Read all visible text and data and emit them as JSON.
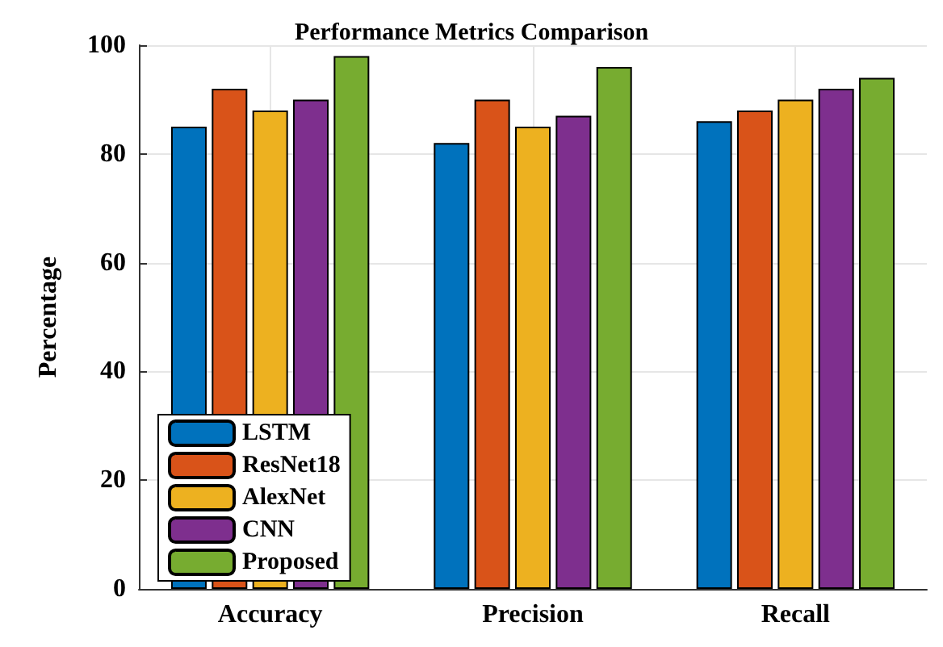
{
  "chart_data": {
    "type": "bar",
    "title": "Performance Metrics Comparison",
    "ylabel": "Percentage",
    "categories": [
      "Accuracy",
      "Precision",
      "Recall"
    ],
    "series": [
      {
        "name": "LSTM",
        "color": "#0072bd",
        "values": [
          85,
          82,
          86
        ]
      },
      {
        "name": "ResNet18",
        "color": "#d95319",
        "values": [
          92,
          90,
          88
        ]
      },
      {
        "name": "AlexNet",
        "color": "#edb120",
        "values": [
          88,
          85,
          90
        ]
      },
      {
        "name": "CNN",
        "color": "#7e2f8e",
        "values": [
          90,
          87,
          92
        ]
      },
      {
        "name": "Proposed",
        "color": "#77ac30",
        "values": [
          98,
          96,
          94
        ]
      }
    ],
    "ylim": [
      0,
      100
    ],
    "yticks": [
      0,
      20,
      40,
      60,
      80,
      100
    ],
    "grid": true,
    "legend": "bottom left"
  }
}
